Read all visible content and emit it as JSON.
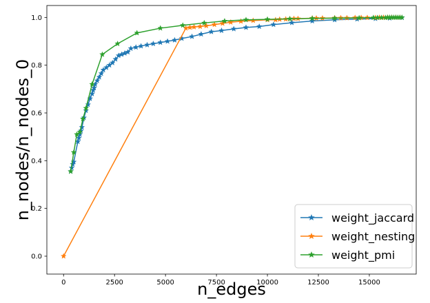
{
  "chart_data": {
    "type": "line",
    "title": "",
    "xlabel": "n_edges",
    "ylabel": "n_nodes/n_nodes_0",
    "xlim": [
      -820,
      17300
    ],
    "ylim": [
      -0.075,
      1.05
    ],
    "xticks": [
      0,
      2500,
      5000,
      7500,
      10000,
      12500,
      15000
    ],
    "xtick_labels": [
      "0",
      "2500",
      "5000",
      "7500",
      "10000",
      "12500",
      "15000"
    ],
    "yticks": [
      0.0,
      0.2,
      0.4,
      0.6,
      0.8,
      1.0
    ],
    "ytick_labels": [
      "0.0",
      "0.2",
      "0.4",
      "0.6",
      "0.8",
      "1.0"
    ],
    "grid": false,
    "legend_position": "lower-right",
    "marker": "star",
    "series": [
      {
        "name": "weight_jaccard",
        "color": "#1f77b4",
        "points": [
          [
            350,
            0.355
          ],
          [
            400,
            0.37
          ],
          [
            450,
            0.385
          ],
          [
            500,
            0.395
          ],
          [
            700,
            0.48
          ],
          [
            750,
            0.495
          ],
          [
            800,
            0.51
          ],
          [
            850,
            0.525
          ],
          [
            900,
            0.54
          ],
          [
            1000,
            0.58
          ],
          [
            1100,
            0.61
          ],
          [
            1200,
            0.635
          ],
          [
            1300,
            0.66
          ],
          [
            1400,
            0.68
          ],
          [
            1450,
            0.695
          ],
          [
            1500,
            0.705
          ],
          [
            1550,
            0.72
          ],
          [
            1650,
            0.735
          ],
          [
            1750,
            0.75
          ],
          [
            1850,
            0.765
          ],
          [
            1950,
            0.78
          ],
          [
            2100,
            0.79
          ],
          [
            2250,
            0.8
          ],
          [
            2400,
            0.81
          ],
          [
            2550,
            0.825
          ],
          [
            2700,
            0.84
          ],
          [
            2850,
            0.845
          ],
          [
            3000,
            0.85
          ],
          [
            3150,
            0.855
          ],
          [
            3300,
            0.87
          ],
          [
            3550,
            0.875
          ],
          [
            3800,
            0.88
          ],
          [
            4100,
            0.885
          ],
          [
            4400,
            0.89
          ],
          [
            4750,
            0.895
          ],
          [
            5100,
            0.9
          ],
          [
            5450,
            0.905
          ],
          [
            5800,
            0.912
          ],
          [
            6300,
            0.92
          ],
          [
            6750,
            0.93
          ],
          [
            7250,
            0.94
          ],
          [
            7750,
            0.945
          ],
          [
            8350,
            0.952
          ],
          [
            8950,
            0.958
          ],
          [
            9600,
            0.962
          ],
          [
            10300,
            0.97
          ],
          [
            11200,
            0.978
          ],
          [
            12200,
            0.985
          ],
          [
            13300,
            0.99
          ],
          [
            14400,
            0.993
          ],
          [
            15300,
            0.995
          ],
          [
            16000,
            0.997
          ],
          [
            16600,
            0.999
          ]
        ]
      },
      {
        "name": "weight_nesting",
        "color": "#ff7f0e",
        "points": [
          [
            0,
            0.0
          ],
          [
            6000,
            0.955
          ],
          [
            6200,
            0.958
          ],
          [
            6400,
            0.96
          ],
          [
            6700,
            0.962
          ],
          [
            7000,
            0.965
          ],
          [
            7400,
            0.97
          ],
          [
            7800,
            0.975
          ],
          [
            8200,
            0.98
          ],
          [
            8700,
            0.984
          ],
          [
            9300,
            0.987
          ],
          [
            10000,
            0.99
          ],
          [
            10400,
            0.99
          ],
          [
            10600,
            0.992
          ],
          [
            10900,
            0.993
          ],
          [
            11100,
            0.994
          ],
          [
            11300,
            0.995
          ],
          [
            11500,
            0.995
          ],
          [
            12200,
            0.997
          ],
          [
            12400,
            0.997
          ],
          [
            12700,
            0.997
          ],
          [
            13300,
            0.998
          ],
          [
            13600,
            0.998
          ],
          [
            13900,
            0.998
          ],
          [
            14300,
            0.999
          ],
          [
            14600,
            0.999
          ],
          [
            14900,
            0.999
          ],
          [
            15300,
            0.999
          ],
          [
            15500,
            1.0
          ],
          [
            15700,
            1.0
          ],
          [
            15900,
            1.0
          ],
          [
            16100,
            1.0
          ],
          [
            16300,
            1.0
          ],
          [
            16500,
            1.0
          ]
        ]
      },
      {
        "name": "weight_pmi",
        "color": "#2ca02c",
        "points": [
          [
            350,
            0.355
          ],
          [
            500,
            0.435
          ],
          [
            650,
            0.51
          ],
          [
            800,
            0.52
          ],
          [
            950,
            0.575
          ],
          [
            1100,
            0.62
          ],
          [
            1400,
            0.72
          ],
          [
            1900,
            0.845
          ],
          [
            2650,
            0.89
          ],
          [
            3600,
            0.935
          ],
          [
            4750,
            0.955
          ],
          [
            5850,
            0.967
          ],
          [
            6900,
            0.977
          ],
          [
            7900,
            0.985
          ],
          [
            8950,
            0.99
          ],
          [
            10000,
            0.992
          ],
          [
            11100,
            0.994
          ],
          [
            12200,
            0.996
          ],
          [
            13300,
            0.997
          ],
          [
            14500,
            0.998
          ],
          [
            15200,
            0.999
          ],
          [
            15400,
            0.999
          ],
          [
            15600,
            0.999
          ],
          [
            15800,
            0.999
          ],
          [
            15900,
            1.0
          ],
          [
            16000,
            1.0
          ],
          [
            16100,
            1.0
          ],
          [
            16200,
            1.0
          ],
          [
            16300,
            1.0
          ],
          [
            16400,
            1.0
          ],
          [
            16500,
            1.0
          ],
          [
            16600,
            1.0
          ]
        ]
      }
    ]
  }
}
